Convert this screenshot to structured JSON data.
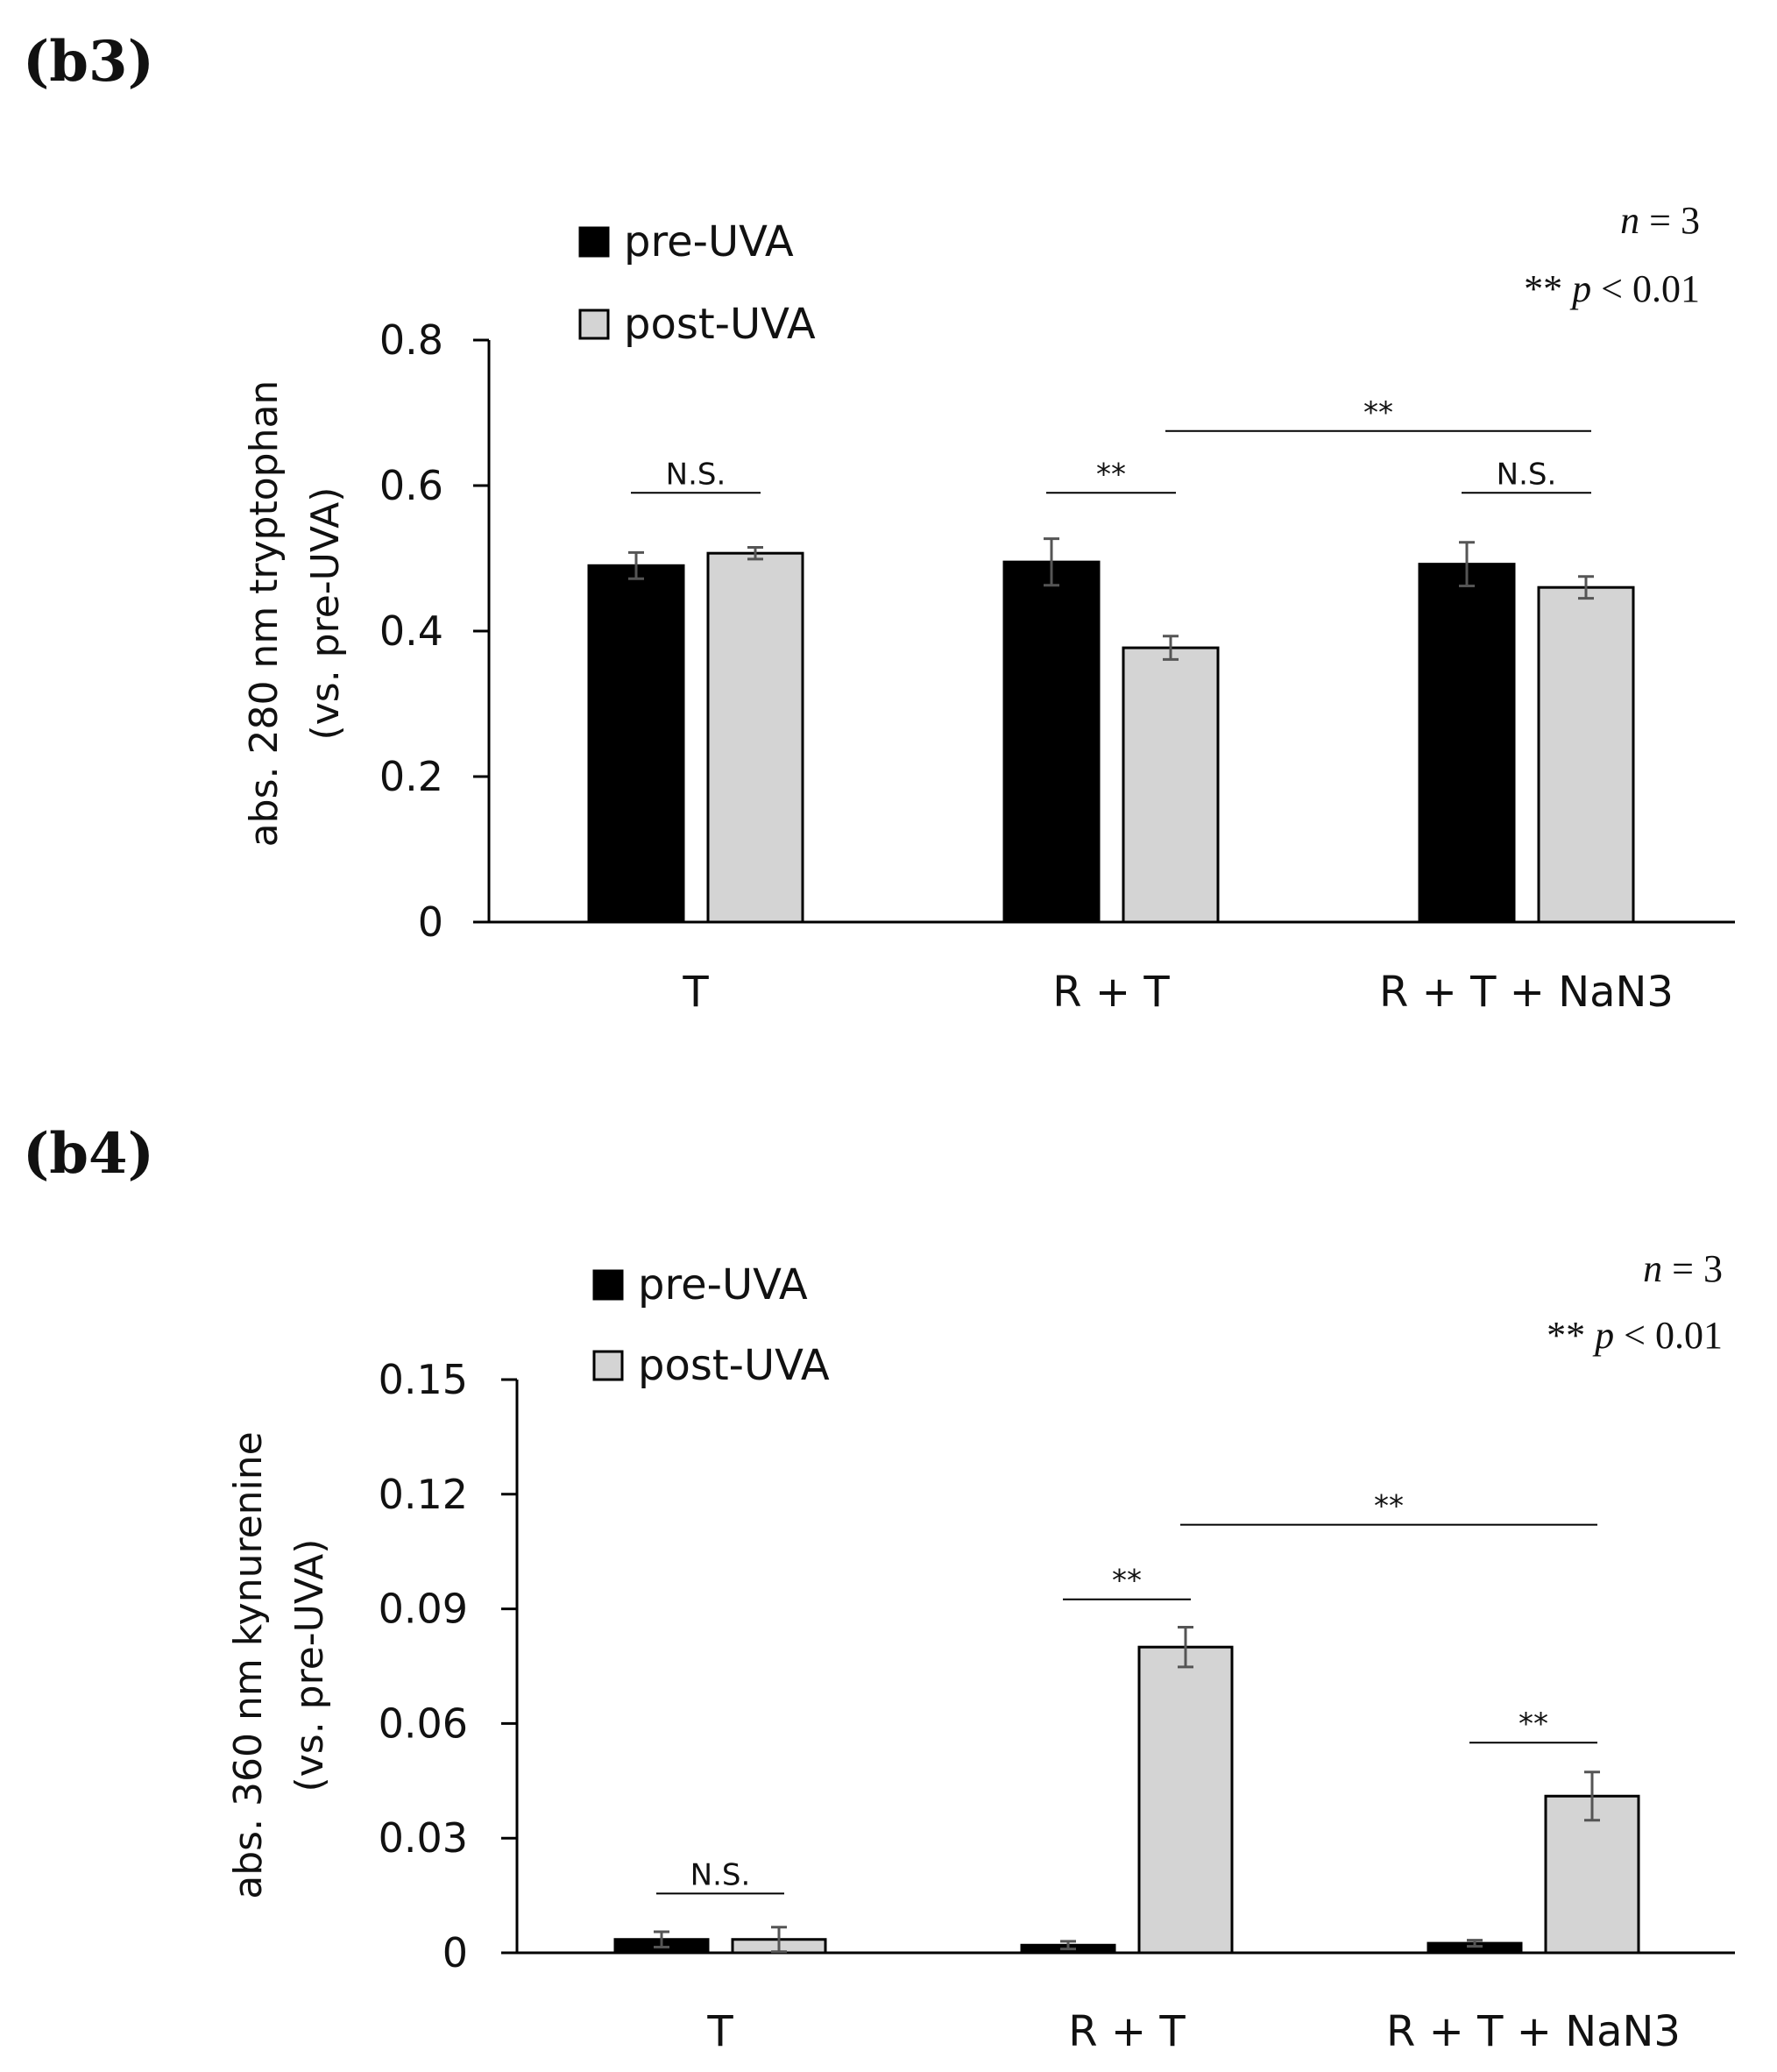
{
  "chart_data": [
    {
      "panel_label": "(b3)",
      "type": "bar",
      "ylabel_line1": "abs. 280 nm tryptophan",
      "ylabel_line2": "(vs. pre-UVA)",
      "categories": [
        "T",
        "R + T",
        "R + T + NaN3"
      ],
      "ylim": [
        0,
        0.8
      ],
      "yticks": [
        0,
        0.2,
        0.4,
        0.6,
        0.8
      ],
      "ytick_labels": [
        "0",
        "0.2",
        "0.4",
        "0.6",
        "0.8"
      ],
      "series": [
        {
          "name": "pre-UVA",
          "color": "#000000",
          "values": [
            0.49,
            0.495,
            0.492
          ],
          "errors": [
            0.018,
            0.032,
            0.03
          ]
        },
        {
          "name": "post-UVA",
          "color": "#d4d4d4",
          "values": [
            0.507,
            0.377,
            0.46
          ],
          "errors": [
            0.008,
            0.016,
            0.015
          ]
        }
      ],
      "stats": {
        "n_label": "n",
        "n_rest": " = 3",
        "p_stars": "**",
        "p_label": "p",
        "p_rest": " < 0.01"
      },
      "significance": [
        {
          "from": [
            0,
            0
          ],
          "to": [
            0,
            1
          ],
          "level": 0.59,
          "label": "N.S."
        },
        {
          "from": [
            1,
            0
          ],
          "to": [
            1,
            1
          ],
          "level": 0.59,
          "label": "**"
        },
        {
          "from": [
            1,
            1
          ],
          "to": [
            2,
            1
          ],
          "level": 0.675,
          "label": "**"
        },
        {
          "from": [
            2,
            0
          ],
          "to": [
            2,
            1
          ],
          "level": 0.59,
          "label": "N.S."
        }
      ]
    },
    {
      "panel_label": "(b4)",
      "type": "bar",
      "ylabel_line1": "abs. 360 nm kynurenine",
      "ylabel_line2": "(vs. pre-UVA)",
      "categories": [
        "T",
        "R + T",
        "R + T + NaN3"
      ],
      "ylim": [
        0,
        0.15
      ],
      "yticks": [
        0,
        0.03,
        0.06,
        0.09,
        0.12,
        0.15
      ],
      "ytick_labels": [
        "0",
        "0.03",
        "0.06",
        "0.09",
        "0.12",
        "0.15"
      ],
      "series": [
        {
          "name": "pre-UVA",
          "color": "#000000",
          "values": [
            0.0035,
            0.002,
            0.0025
          ],
          "errors": [
            0.002,
            0.001,
            0.0008
          ]
        },
        {
          "name": "post-UVA",
          "color": "#d4d4d4",
          "values": [
            0.0035,
            0.08,
            0.041
          ],
          "errors": [
            0.0032,
            0.0052,
            0.0063
          ]
        }
      ],
      "stats": {
        "n_label": "n",
        "n_rest": " = 3",
        "p_stars": "**",
        "p_label": "p",
        "p_rest": " < 0.01"
      },
      "significance": [
        {
          "from": [
            0,
            0
          ],
          "to": [
            0,
            1
          ],
          "level": 0.0155,
          "label": "N.S."
        },
        {
          "from": [
            1,
            0
          ],
          "to": [
            1,
            1
          ],
          "level": 0.0925,
          "label": "**"
        },
        {
          "from": [
            1,
            1
          ],
          "to": [
            2,
            1
          ],
          "level": 0.112,
          "label": "**"
        },
        {
          "from": [
            2,
            0
          ],
          "to": [
            2,
            1
          ],
          "level": 0.055,
          "label": "**"
        }
      ]
    }
  ]
}
